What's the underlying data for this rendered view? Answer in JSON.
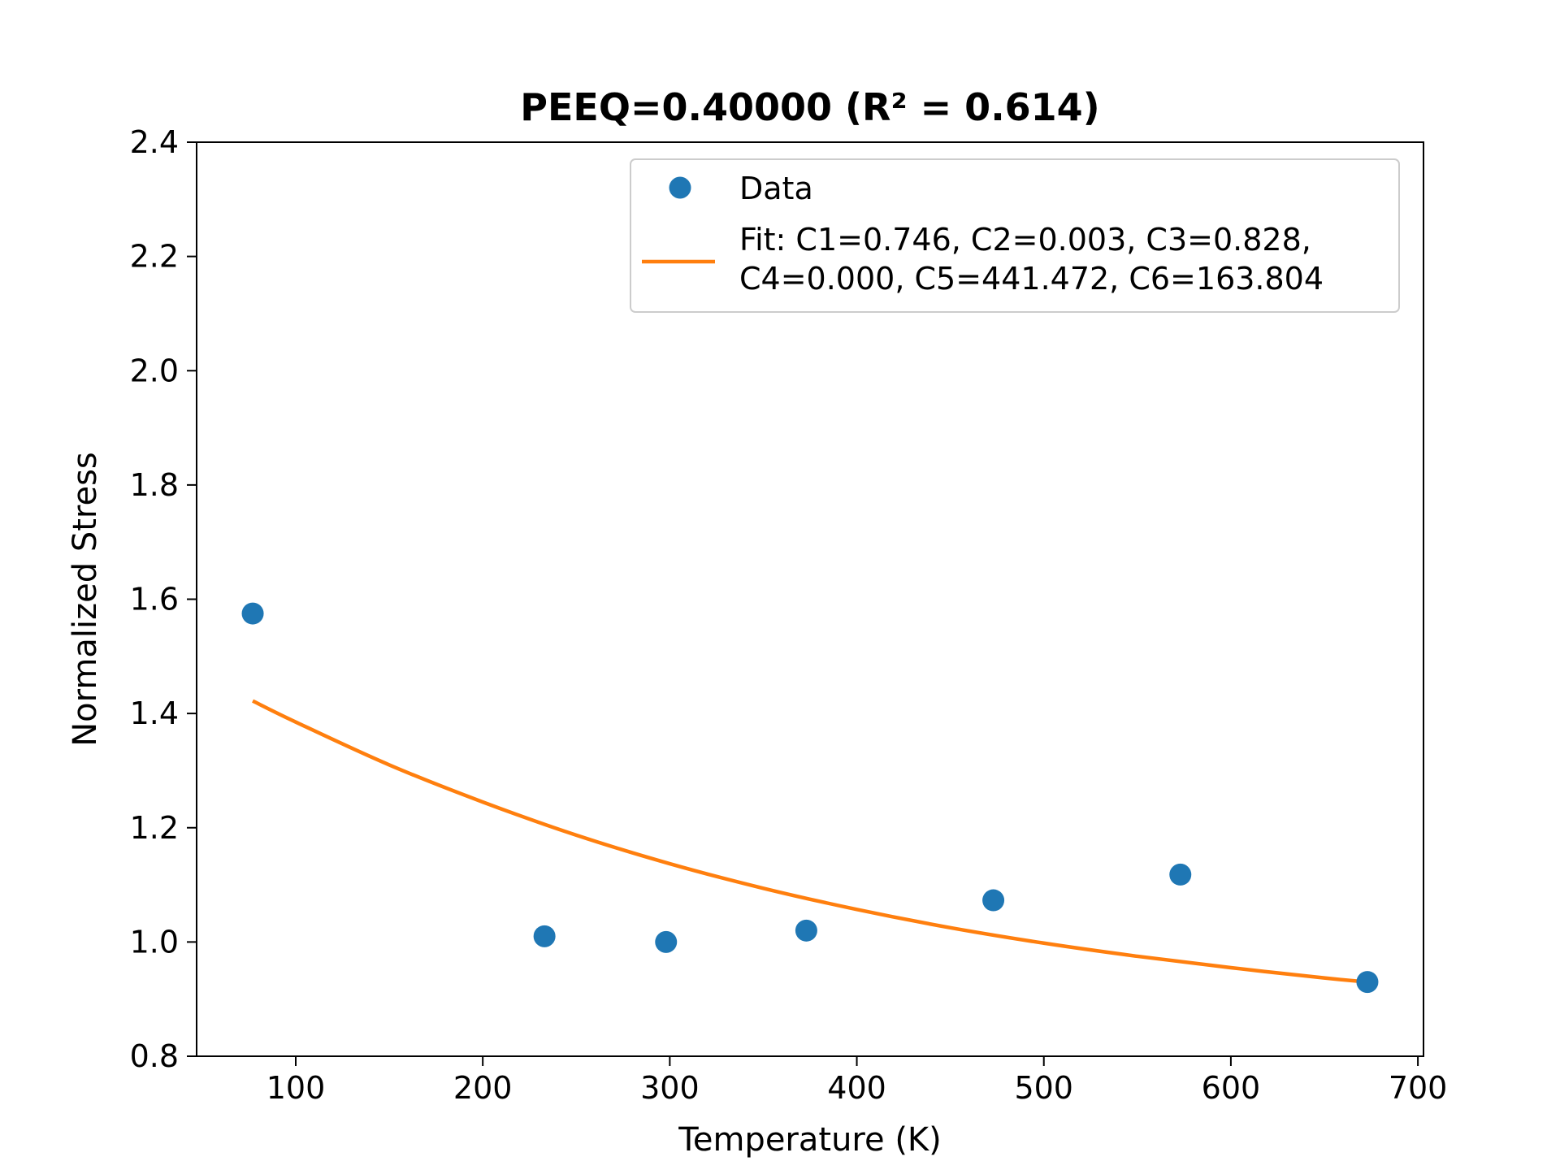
{
  "chart_data": {
    "type": "scatter",
    "title": "PEEQ=0.40000 (R² = 0.614)",
    "xlabel": "Temperature (K)",
    "ylabel": "Normalized Stress",
    "xlim": [
      47,
      703
    ],
    "ylim": [
      0.8,
      2.4
    ],
    "xticks": [
      100,
      200,
      300,
      400,
      500,
      600,
      700
    ],
    "xtick_labels": [
      "100",
      "200",
      "300",
      "400",
      "500",
      "600",
      "700"
    ],
    "yticks": [
      0.8,
      1.0,
      1.2,
      1.4,
      1.6,
      1.8,
      2.0,
      2.2,
      2.4
    ],
    "ytick_labels": [
      "0.8",
      "1.0",
      "1.2",
      "1.4",
      "1.6",
      "1.8",
      "2.0",
      "2.2",
      "2.4"
    ],
    "grid": false,
    "legend_position": "top-right",
    "series": [
      {
        "name": "Data",
        "kind": "scatter",
        "color": "#1f77b4",
        "x": [
          77,
          233,
          298,
          373,
          473,
          573,
          673
        ],
        "y": [
          1.575,
          1.01,
          1.0,
          1.02,
          1.073,
          1.118,
          0.93
        ]
      },
      {
        "name": "Fit: C1=0.746, C2=0.003, C3=0.828,\nC4=0.000, C5=441.472, C6=163.804",
        "name_lines": [
          "Fit: C1=0.746, C2=0.003, C3=0.828,",
          "C4=0.000, C5=441.472, C6=163.804"
        ],
        "kind": "line",
        "color": "#ff7f0e",
        "x": [
          77,
          100,
          150,
          200,
          250,
          300,
          350,
          400,
          450,
          500,
          550,
          600,
          650,
          673
        ],
        "y": [
          1.422,
          1.385,
          1.31,
          1.245,
          1.187,
          1.137,
          1.094,
          1.057,
          1.025,
          0.998,
          0.975,
          0.955,
          0.937,
          0.93
        ]
      }
    ]
  }
}
